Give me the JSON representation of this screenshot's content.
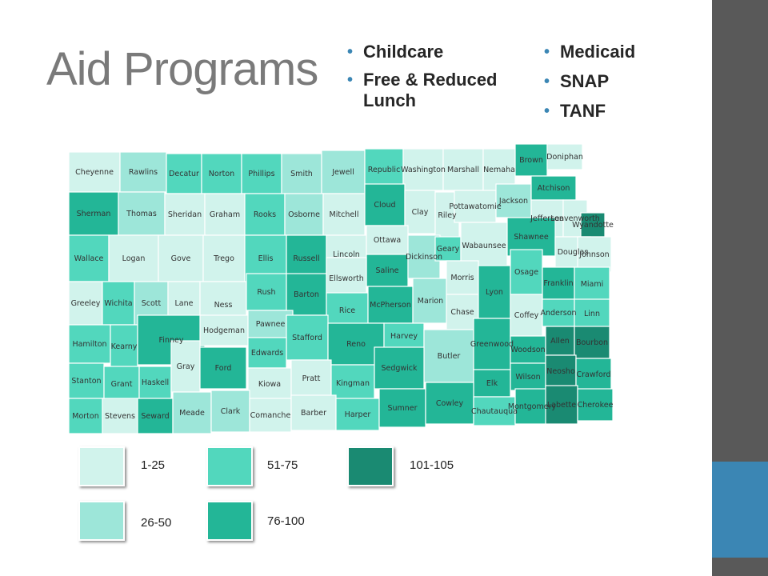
{
  "title": "Aid Programs",
  "programs_left": [
    "Childcare",
    "Free & Reduced Lunch"
  ],
  "programs_right": [
    "Medicaid",
    "SNAP",
    "TANF"
  ],
  "colors": {
    "c1": "#d1f3ec",
    "c2": "#9de6d9",
    "c3": "#52d7bd",
    "c4": "#23b697",
    "c5": "#1a8a72",
    "side_bar": "#595959",
    "accent": "#3b86b4"
  },
  "legend": [
    {
      "label": "1-25",
      "class": "c1"
    },
    {
      "label": "51-75",
      "class": "c3"
    },
    {
      "label": "101-105",
      "class": "c5"
    },
    {
      "label": "26-50",
      "class": "c2"
    },
    {
      "label": "76-100",
      "class": "c4"
    }
  ],
  "counties": [
    {
      "name": "Cheyenne",
      "class": "c1"
    },
    {
      "name": "Rawlins",
      "class": "c2"
    },
    {
      "name": "Decatur",
      "class": "c3"
    },
    {
      "name": "Norton",
      "class": "c3"
    },
    {
      "name": "Phillips",
      "class": "c3"
    },
    {
      "name": "Smith",
      "class": "c2"
    },
    {
      "name": "Jewell",
      "class": "c2"
    },
    {
      "name": "Republic",
      "class": "c3"
    },
    {
      "name": "Washington",
      "class": "c1"
    },
    {
      "name": "Marshall",
      "class": "c1"
    },
    {
      "name": "Nemaha",
      "class": "c1"
    },
    {
      "name": "Brown",
      "class": "c4"
    },
    {
      "name": "Doniphan",
      "class": "c1"
    },
    {
      "name": "Sherman",
      "class": "c4"
    },
    {
      "name": "Thomas",
      "class": "c2"
    },
    {
      "name": "Sheridan",
      "class": "c1"
    },
    {
      "name": "Graham",
      "class": "c1"
    },
    {
      "name": "Rooks",
      "class": "c3"
    },
    {
      "name": "Osborne",
      "class": "c2"
    },
    {
      "name": "Mitchell",
      "class": "c1"
    },
    {
      "name": "Cloud",
      "class": "c4"
    },
    {
      "name": "Clay",
      "class": "c1"
    },
    {
      "name": "Riley",
      "class": "c1"
    },
    {
      "name": "Pottawatomie",
      "class": "c1"
    },
    {
      "name": "Jackson",
      "class": "c2"
    },
    {
      "name": "Atchison",
      "class": "c4"
    },
    {
      "name": "Jefferson",
      "class": "c1"
    },
    {
      "name": "Leavenworth",
      "class": "c1"
    },
    {
      "name": "Wyandotte",
      "class": "c5"
    },
    {
      "name": "Wallace",
      "class": "c3"
    },
    {
      "name": "Logan",
      "class": "c1"
    },
    {
      "name": "Gove",
      "class": "c1"
    },
    {
      "name": "Trego",
      "class": "c1"
    },
    {
      "name": "Ellis",
      "class": "c3"
    },
    {
      "name": "Russell",
      "class": "c4"
    },
    {
      "name": "Lincoln",
      "class": "c1"
    },
    {
      "name": "Ottawa",
      "class": "c1"
    },
    {
      "name": "Saline",
      "class": "c4"
    },
    {
      "name": "Dickinson",
      "class": "c2"
    },
    {
      "name": "Geary",
      "class": "c3"
    },
    {
      "name": "Wabaunsee",
      "class": "c1"
    },
    {
      "name": "Shawnee",
      "class": "c4"
    },
    {
      "name": "Douglas",
      "class": "c1"
    },
    {
      "name": "Johnson",
      "class": "c1"
    },
    {
      "name": "Greeley",
      "class": "c1"
    },
    {
      "name": "Wichita",
      "class": "c3"
    },
    {
      "name": "Scott",
      "class": "c2"
    },
    {
      "name": "Lane",
      "class": "c1"
    },
    {
      "name": "Ness",
      "class": "c1"
    },
    {
      "name": "Rush",
      "class": "c3"
    },
    {
      "name": "Barton",
      "class": "c4"
    },
    {
      "name": "Ellsworth",
      "class": "c1"
    },
    {
      "name": "Rice",
      "class": "c3"
    },
    {
      "name": "McPherson",
      "class": "c4"
    },
    {
      "name": "Marion",
      "class": "c2"
    },
    {
      "name": "Morris",
      "class": "c1"
    },
    {
      "name": "Chase",
      "class": "c1"
    },
    {
      "name": "Lyon",
      "class": "c4"
    },
    {
      "name": "Osage",
      "class": "c3"
    },
    {
      "name": "Franklin",
      "class": "c4"
    },
    {
      "name": "Miami",
      "class": "c3"
    },
    {
      "name": "Hamilton",
      "class": "c3"
    },
    {
      "name": "Kearny",
      "class": "c3"
    },
    {
      "name": "Finney",
      "class": "c4"
    },
    {
      "name": "Hodgeman",
      "class": "c1"
    },
    {
      "name": "Pawnee",
      "class": "c2"
    },
    {
      "name": "Stafford",
      "class": "c3"
    },
    {
      "name": "Edwards",
      "class": "c3"
    },
    {
      "name": "Reno",
      "class": "c4"
    },
    {
      "name": "Harvey",
      "class": "c3"
    },
    {
      "name": "Butler",
      "class": "c2"
    },
    {
      "name": "Greenwood",
      "class": "c4"
    },
    {
      "name": "Coffey",
      "class": "c1"
    },
    {
      "name": "Anderson",
      "class": "c3"
    },
    {
      "name": "Linn",
      "class": "c3"
    },
    {
      "name": "Stanton",
      "class": "c3"
    },
    {
      "name": "Grant",
      "class": "c3"
    },
    {
      "name": "Haskell",
      "class": "c3"
    },
    {
      "name": "Gray",
      "class": "c1"
    },
    {
      "name": "Ford",
      "class": "c4"
    },
    {
      "name": "Kiowa",
      "class": "c1"
    },
    {
      "name": "Pratt",
      "class": "c1"
    },
    {
      "name": "Kingman",
      "class": "c3"
    },
    {
      "name": "Sedgwick",
      "class": "c4"
    },
    {
      "name": "Woodson",
      "class": "c4"
    },
    {
      "name": "Allen",
      "class": "c5"
    },
    {
      "name": "Bourbon",
      "class": "c5"
    },
    {
      "name": "Wilson",
      "class": "c4"
    },
    {
      "name": "Neosho",
      "class": "c5"
    },
    {
      "name": "Crawford",
      "class": "c4"
    },
    {
      "name": "Elk",
      "class": "c4"
    },
    {
      "name": "Morton",
      "class": "c3"
    },
    {
      "name": "Stevens",
      "class": "c1"
    },
    {
      "name": "Seward",
      "class": "c4"
    },
    {
      "name": "Meade",
      "class": "c2"
    },
    {
      "name": "Clark",
      "class": "c2"
    },
    {
      "name": "Comanche",
      "class": "c1"
    },
    {
      "name": "Barber",
      "class": "c1"
    },
    {
      "name": "Harper",
      "class": "c3"
    },
    {
      "name": "Sumner",
      "class": "c4"
    },
    {
      "name": "Cowley",
      "class": "c4"
    },
    {
      "name": "Chautauqua",
      "class": "c3"
    },
    {
      "name": "Montgomery",
      "class": "c4"
    },
    {
      "name": "Labette",
      "class": "c5"
    },
    {
      "name": "Cherokee",
      "class": "c4"
    }
  ]
}
